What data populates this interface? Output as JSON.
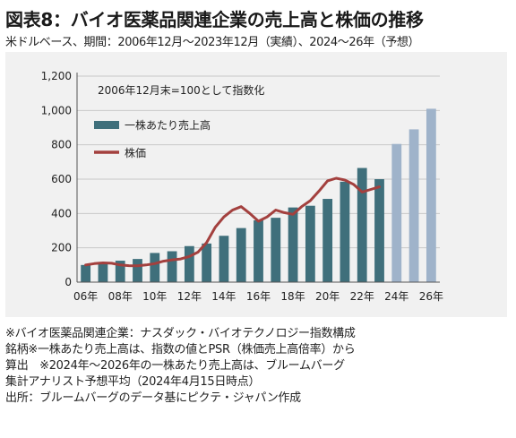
{
  "title": "図表8：バイオ医薬品関連企業の売上高と株価の推移",
  "subtitle": "米ドルベース、期間：2006年12月～2023年12月（実績）、2024～26年（予想）",
  "colors": {
    "panel_bg": "#f1f1f1",
    "bar_actual": "#3f6f7b",
    "bar_forecast": "#9fb3ca",
    "line": "#a3403e"
  },
  "chart_data": {
    "type": "bar",
    "annotation": "2006年12月末=100として指数化",
    "categories": [
      "06年",
      "07年",
      "08年",
      "09年",
      "10年",
      "11年",
      "12年",
      "13年",
      "14年",
      "15年",
      "16年",
      "17年",
      "18年",
      "19年",
      "20年",
      "21年",
      "22年",
      "23年",
      "24年",
      "25年",
      "26年"
    ],
    "x_tick_labels": [
      "06年",
      "08年",
      "10年",
      "12年",
      "14年",
      "16年",
      "18年",
      "20年",
      "22年",
      "24年",
      "26年"
    ],
    "ylim": [
      0,
      1200
    ],
    "y_ticks": [
      0,
      200,
      400,
      600,
      800,
      1000,
      1200
    ],
    "y_tick_labels": [
      "0",
      "200",
      "400",
      "600",
      "800",
      "1,000",
      "1,200"
    ],
    "grid": "horizontal",
    "legend_position": "top-left",
    "series": [
      {
        "name": "一株あたり売上高",
        "type": "bar",
        "values": [
          100,
          105,
          125,
          135,
          170,
          180,
          210,
          225,
          270,
          315,
          360,
          375,
          435,
          445,
          485,
          585,
          665,
          600,
          805,
          890,
          1010
        ],
        "forecast_from_index": 18
      },
      {
        "name": "株価",
        "type": "line",
        "x": [
          "06年",
          "06.5",
          "07年",
          "07.5",
          "08年",
          "08.5",
          "09年",
          "09.5",
          "10年",
          "10.5",
          "11年",
          "11.5",
          "12年",
          "12.5",
          "13年",
          "13.5",
          "14年",
          "14.5",
          "15年",
          "15.5",
          "16年",
          "16.5",
          "17年",
          "17.5",
          "18年",
          "18.5",
          "19年",
          "19.5",
          "20年",
          "20.5",
          "21年",
          "21.5",
          "22年",
          "22.5",
          "23年"
        ],
        "values": [
          100,
          108,
          112,
          110,
          100,
          96,
          95,
          100,
          108,
          122,
          130,
          135,
          150,
          175,
          230,
          320,
          380,
          420,
          440,
          400,
          355,
          380,
          420,
          405,
          395,
          440,
          475,
          530,
          590,
          605,
          595,
          570,
          525,
          540,
          555
        ]
      }
    ]
  },
  "notes": [
    "※バイオ医薬品関連企業：ナスダック・バイオテクノロジー指数構成",
    "銘柄※一株あたり売上高は、指数の値とPSR（株価売上高倍率）から",
    "算出　※2024年～2026年の一株あたり売上高は、ブルームバーグ",
    "集計アナリスト予想平均（2024年4月15日時点）",
    "出所：ブルームバーグのデータ基にピクテ・ジャパン作成"
  ]
}
